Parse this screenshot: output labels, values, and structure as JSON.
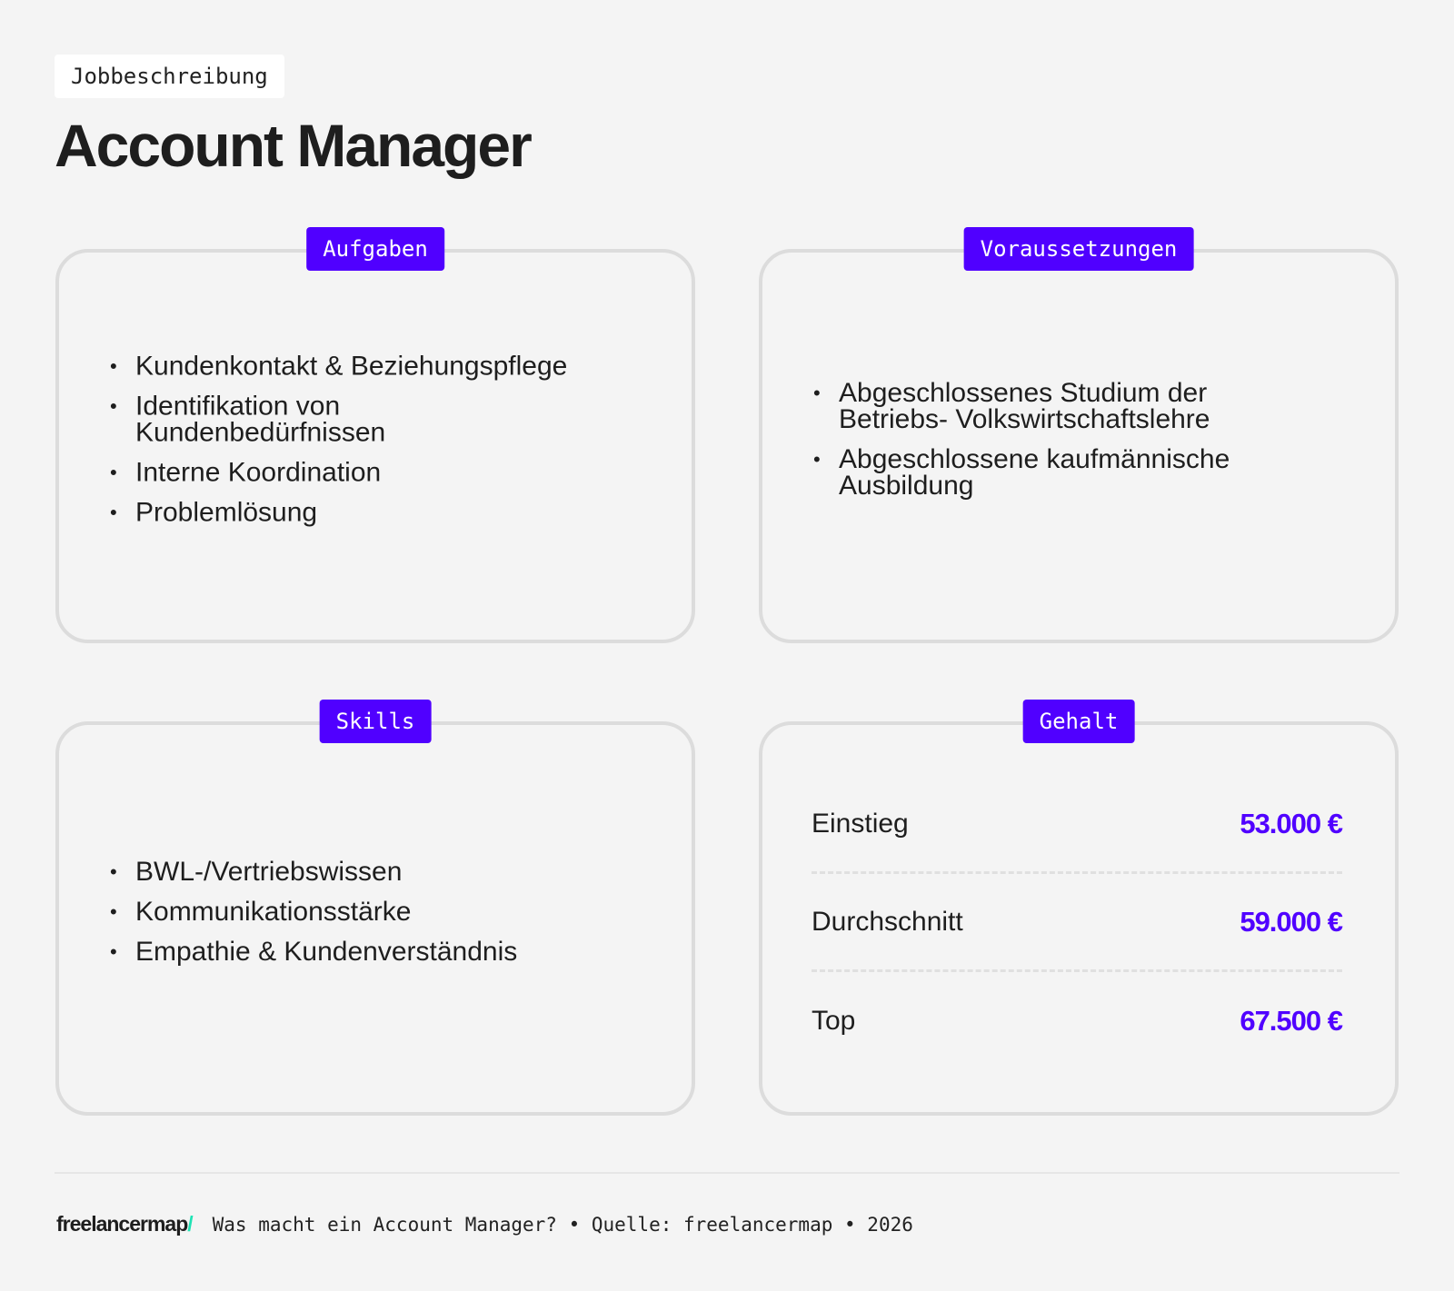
{
  "header": {
    "tag": "Jobbeschreibung",
    "title": "Account Manager"
  },
  "cards": {
    "aufgaben": {
      "label": "Aufgaben",
      "items": [
        "Kundenkontakt & Beziehungspflege",
        "Identifikation von Kundenbedürfnissen",
        "Interne Koordination",
        "Problemlösung"
      ]
    },
    "voraussetzungen": {
      "label": "Voraussetzungen",
      "items": [
        "Abgeschlossenes Studium der Betriebs- Volkswirtschaftslehre",
        "Abgeschlossene kaufmännische Ausbildung"
      ]
    },
    "skills": {
      "label": "Skills",
      "items": [
        "BWL-/Vertriebswissen",
        "Kommunikationsstärke",
        "Empathie & Kundenverständnis"
      ]
    },
    "gehalt": {
      "label": "Gehalt",
      "rows": [
        {
          "label": "Einstieg",
          "value": "53.000 €"
        },
        {
          "label": "Durchschnitt",
          "value": "59.000 €"
        },
        {
          "label": "Top",
          "value": "67.500 €"
        }
      ]
    }
  },
  "footer": {
    "logo": "freelancermap",
    "logo_slash": "/",
    "text": "Was macht ein Account Manager? • Quelle: freelancermap • 2026"
  },
  "colors": {
    "accent": "#5000ff",
    "logo_accent": "#1ee3b4",
    "background": "#f4f4f4"
  }
}
